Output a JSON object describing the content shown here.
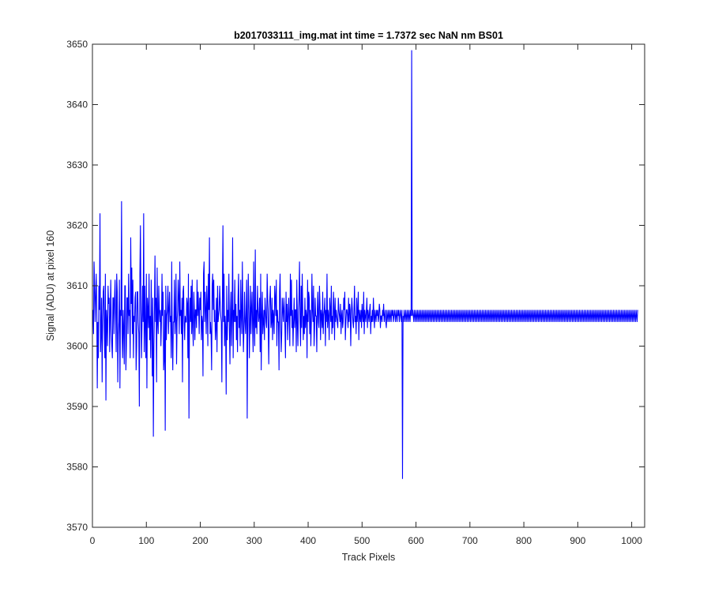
{
  "chart_data": {
    "type": "line",
    "title": "b2017033111_img.mat int time = 1.7372 sec  NaN nm BS01",
    "xlabel": "Track Pixels",
    "ylabel": "Signal (ADU) at pixel 160",
    "xlim": [
      0,
      1024
    ],
    "ylim": [
      3570,
      3650
    ],
    "xticks": [
      0,
      100,
      200,
      300,
      400,
      500,
      600,
      700,
      800,
      900,
      1000
    ],
    "yticks": [
      3570,
      3580,
      3590,
      3600,
      3610,
      3620,
      3630,
      3640,
      3650
    ],
    "grid": false,
    "box": true,
    "colors": {
      "line": "#0000ff",
      "axes": "#262626",
      "background": "#ffffff"
    },
    "series": [
      {
        "color": "#0000ff",
        "x_start": 1,
        "x_step": 1,
        "y": [
          3606,
          3602,
          3614,
          3610,
          3604,
          3608,
          3612,
          3606,
          3593,
          3604,
          3598,
          3610,
          3606,
          3622,
          3599,
          3602,
          3608,
          3594,
          3604,
          3609,
          3610,
          3603,
          3598,
          3612,
          3591,
          3606,
          3604,
          3600,
          3610,
          3607,
          3608,
          3599,
          3605,
          3611,
          3603,
          3600,
          3598,
          3608,
          3608,
          3602,
          3608,
          3611,
          3605,
          3599,
          3612,
          3609,
          3594,
          3602,
          3604,
          3611,
          3593,
          3606,
          3605,
          3624,
          3602,
          3598,
          3606,
          3603,
          3597,
          3610,
          3610,
          3596,
          3600,
          3608,
          3608,
          3602,
          3612,
          3605,
          3606,
          3598,
          3618,
          3607,
          3613,
          3602,
          3611,
          3598,
          3605,
          3604,
          3608,
          3609,
          3596,
          3600,
          3609,
          3609,
          3604,
          3602,
          3590,
          3612,
          3620,
          3606,
          3598,
          3604,
          3610,
          3604,
          3622,
          3599,
          3610,
          3603,
          3598,
          3612,
          3593,
          3608,
          3606,
          3603,
          3612,
          3601,
          3605,
          3598,
          3611,
          3604,
          3595,
          3608,
          3585,
          3600,
          3606,
          3615,
          3604,
          3608,
          3594,
          3613,
          3604,
          3602,
          3610,
          3606,
          3604,
          3606,
          3600,
          3604,
          3612,
          3605,
          3609,
          3596,
          3598,
          3606,
          3586,
          3610,
          3601,
          3605,
          3606,
          3610,
          3602,
          3606,
          3609,
          3604,
          3605,
          3598,
          3614,
          3602,
          3596,
          3604,
          3604,
          3611,
          3602,
          3605,
          3612,
          3597,
          3604,
          3606,
          3611,
          3608,
          3602,
          3614,
          3605,
          3606,
          3602,
          3608,
          3594,
          3609,
          3610,
          3604,
          3601,
          3605,
          3604,
          3604,
          3608,
          3607,
          3598,
          3612,
          3588,
          3604,
          3608,
          3604,
          3610,
          3602,
          3611,
          3603,
          3600,
          3609,
          3606,
          3601,
          3606,
          3606,
          3603,
          3611,
          3605,
          3609,
          3606,
          3602,
          3608,
          3606,
          3609,
          3601,
          3605,
          3604,
          3595,
          3612,
          3614,
          3604,
          3609,
          3606,
          3602,
          3610,
          3607,
          3600,
          3612,
          3606,
          3618,
          3602,
          3604,
          3602,
          3596,
          3610,
          3612,
          3606,
          3611,
          3604,
          3606,
          3601,
          3603,
          3608,
          3599,
          3610,
          3604,
          3605,
          3606,
          3610,
          3607,
          3605,
          3604,
          3594,
          3608,
          3620,
          3604,
          3612,
          3600,
          3605,
          3603,
          3592,
          3610,
          3601,
          3606,
          3604,
          3612,
          3603,
          3597,
          3606,
          3609,
          3600,
          3605,
          3618,
          3598,
          3606,
          3604,
          3611,
          3604,
          3607,
          3601,
          3605,
          3599,
          3608,
          3612,
          3603,
          3606,
          3600,
          3611,
          3605,
          3602,
          3614,
          3605,
          3599,
          3603,
          3609,
          3604,
          3602,
          3606,
          3611,
          3588,
          3604,
          3612,
          3606,
          3598,
          3604,
          3610,
          3602,
          3606,
          3609,
          3603,
          3599,
          3614,
          3604,
          3600,
          3616,
          3603,
          3606,
          3602,
          3610,
          3606,
          3604,
          3605,
          3608,
          3599,
          3612,
          3596,
          3605,
          3609,
          3602,
          3604,
          3606,
          3601,
          3608,
          3606,
          3604,
          3603,
          3612,
          3608,
          3603,
          3597,
          3606,
          3608,
          3610,
          3603,
          3604,
          3608,
          3601,
          3606,
          3605,
          3602,
          3610,
          3608,
          3605,
          3611,
          3600,
          3606,
          3604,
          3604,
          3596,
          3609,
          3612,
          3604,
          3599,
          3602,
          3608,
          3606,
          3604,
          3608,
          3606,
          3603,
          3598,
          3609,
          3604,
          3607,
          3601,
          3605,
          3608,
          3604,
          3600,
          3612,
          3605,
          3611,
          3603,
          3606,
          3600,
          3604,
          3608,
          3603,
          3606,
          3606,
          3599,
          3611,
          3604,
          3600,
          3606,
          3608,
          3614,
          3604,
          3600,
          3610,
          3603,
          3612,
          3606,
          3601,
          3605,
          3602,
          3608,
          3603,
          3606,
          3605,
          3598,
          3611,
          3604,
          3609,
          3608,
          3602,
          3606,
          3600,
          3604,
          3612,
          3606,
          3604,
          3610,
          3600,
          3603,
          3608,
          3605,
          3605,
          3599,
          3606,
          3609,
          3604,
          3603,
          3610,
          3607,
          3601,
          3606,
          3605,
          3603,
          3609,
          3602,
          3605,
          3606,
          3608,
          3600,
          3606,
          3604,
          3612,
          3603,
          3606,
          3605,
          3601,
          3608,
          3606,
          3604,
          3610,
          3602,
          3605,
          3603,
          3609,
          3606,
          3601,
          3608,
          3604,
          3606,
          3605,
          3604,
          3603,
          3608,
          3606,
          3605,
          3604,
          3607,
          3602,
          3605,
          3606,
          3603,
          3604,
          3608,
          3606,
          3609,
          3601,
          3604,
          3606,
          3606,
          3605,
          3603,
          3608,
          3604,
          3607,
          3606,
          3600,
          3605,
          3608,
          3606,
          3604,
          3603,
          3606,
          3610,
          3604,
          3605,
          3602,
          3608,
          3604,
          3606,
          3609,
          3601,
          3606,
          3605,
          3604,
          3606,
          3603,
          3607,
          3605,
          3604,
          3609,
          3602,
          3606,
          3605,
          3604,
          3606,
          3608,
          3603,
          3606,
          3605,
          3604,
          3606,
          3607,
          3602,
          3605,
          3604,
          3606,
          3604,
          3608,
          3605,
          3603,
          3606,
          3605,
          3604,
          3606,
          3605,
          3606,
          3604,
          3605,
          3607,
          3606,
          3603,
          3605,
          3605,
          3604,
          3606,
          3605,
          3607,
          3604,
          3605,
          3606,
          3604,
          3603,
          3606,
          3605,
          3604,
          3606,
          3605,
          3604,
          3606,
          3605,
          3604,
          3606,
          3605,
          3606,
          3604,
          3605,
          3606,
          3605,
          3604,
          3606,
          3605,
          3604,
          3606,
          3605,
          3606,
          3604,
          3605,
          3606,
          3605,
          3604,
          3606,
          3578,
          3605,
          3604,
          3606,
          3605,
          3604,
          3606,
          3605,
          3604,
          3606,
          3605,
          3604,
          3606,
          3605,
          3604,
          3606,
          3605,
          3649,
          3605,
          3606,
          3605,
          3604,
          3606,
          3605,
          3604,
          3606,
          3605,
          3604,
          3606,
          3605,
          3604,
          3606,
          3605,
          3604,
          3606,
          3605,
          3604,
          3606,
          3605,
          3604,
          3606,
          3605,
          3604,
          3606,
          3605,
          3604,
          3606,
          3605,
          3604,
          3606,
          3605,
          3604,
          3606,
          3605,
          3604,
          3606,
          3605,
          3604,
          3606,
          3605,
          3604,
          3606,
          3605,
          3604,
          3606,
          3605,
          3604,
          3606,
          3605,
          3604,
          3606,
          3605,
          3604,
          3606,
          3605,
          3604,
          3606,
          3605,
          3604,
          3606,
          3605,
          3604,
          3606,
          3605,
          3604,
          3606,
          3605,
          3604,
          3606,
          3605,
          3604,
          3606,
          3605,
          3604,
          3606,
          3605,
          3604,
          3606,
          3605,
          3604,
          3606,
          3605,
          3604,
          3606,
          3605,
          3604,
          3606,
          3605,
          3604,
          3606,
          3605,
          3604,
          3606,
          3605,
          3604,
          3606,
          3605,
          3604,
          3606,
          3605,
          3604,
          3606,
          3605,
          3604,
          3606,
          3605,
          3604,
          3606,
          3605,
          3604,
          3606,
          3605,
          3604,
          3606,
          3605,
          3604,
          3606,
          3605,
          3604,
          3606,
          3605,
          3604,
          3606,
          3605,
          3604,
          3606,
          3605,
          3604,
          3606,
          3605,
          3604,
          3606,
          3605,
          3604,
          3606,
          3605,
          3604,
          3606,
          3605,
          3604,
          3606,
          3605,
          3604,
          3606,
          3605,
          3604,
          3606,
          3605,
          3604,
          3606,
          3605,
          3604,
          3606,
          3605,
          3604,
          3606,
          3605,
          3604,
          3606,
          3605,
          3604,
          3606,
          3605,
          3604,
          3606,
          3605,
          3604,
          3606,
          3605,
          3604,
          3606,
          3605,
          3604,
          3606,
          3605,
          3604,
          3606,
          3605,
          3604,
          3606,
          3605,
          3604,
          3606,
          3605,
          3604,
          3606,
          3605,
          3604,
          3606,
          3605,
          3604,
          3606,
          3605,
          3604,
          3606,
          3605,
          3604,
          3606,
          3605,
          3604,
          3606,
          3605,
          3604,
          3606,
          3605,
          3604,
          3606,
          3605,
          3604,
          3606,
          3605,
          3604,
          3606,
          3605,
          3604,
          3606,
          3605,
          3604,
          3606,
          3605,
          3604,
          3606,
          3605,
          3604,
          3606,
          3605,
          3604,
          3606,
          3605,
          3604,
          3606,
          3605,
          3604,
          3606,
          3605,
          3604,
          3606,
          3605,
          3604,
          3606,
          3605,
          3604,
          3606,
          3605,
          3604,
          3606,
          3605,
          3604,
          3606,
          3605,
          3604,
          3606,
          3605,
          3604,
          3606,
          3605,
          3604,
          3606,
          3605,
          3604,
          3606,
          3605,
          3604,
          3606,
          3605,
          3604,
          3606,
          3605,
          3604,
          3606,
          3605,
          3604,
          3606,
          3605,
          3604,
          3606,
          3605,
          3604,
          3606,
          3605,
          3604,
          3606,
          3605,
          3604,
          3606,
          3605,
          3604,
          3606,
          3605,
          3604,
          3606,
          3605,
          3604,
          3606,
          3605,
          3604,
          3606,
          3605,
          3604,
          3606,
          3605,
          3604,
          3606,
          3605,
          3604,
          3606,
          3605,
          3604,
          3606,
          3605,
          3604,
          3606,
          3605,
          3604,
          3606,
          3605,
          3604,
          3606,
          3605,
          3604,
          3606,
          3605,
          3604,
          3606,
          3605,
          3604,
          3606,
          3605,
          3604,
          3606,
          3605,
          3604,
          3606,
          3605,
          3604,
          3606,
          3605,
          3604,
          3606,
          3605,
          3604,
          3606,
          3605,
          3604,
          3606,
          3605,
          3604,
          3606,
          3605,
          3604,
          3606,
          3605,
          3604,
          3606,
          3605,
          3604,
          3606,
          3605,
          3604,
          3606,
          3605,
          3604,
          3606,
          3605,
          3604,
          3606,
          3605,
          3604,
          3606,
          3605,
          3604,
          3606,
          3605,
          3604,
          3606,
          3605,
          3604,
          3606,
          3605,
          3604,
          3606,
          3605,
          3604,
          3606,
          3605,
          3604,
          3606,
          3605,
          3604,
          3606,
          3605,
          3604,
          3606,
          3605,
          3604,
          3606,
          3605,
          3604,
          3606,
          3605,
          3604,
          3606,
          3605,
          3604,
          3606,
          3605,
          3604,
          3606,
          3605,
          3604,
          3606,
          3605,
          3604,
          3606,
          3605,
          3604,
          3606
        ]
      }
    ]
  }
}
